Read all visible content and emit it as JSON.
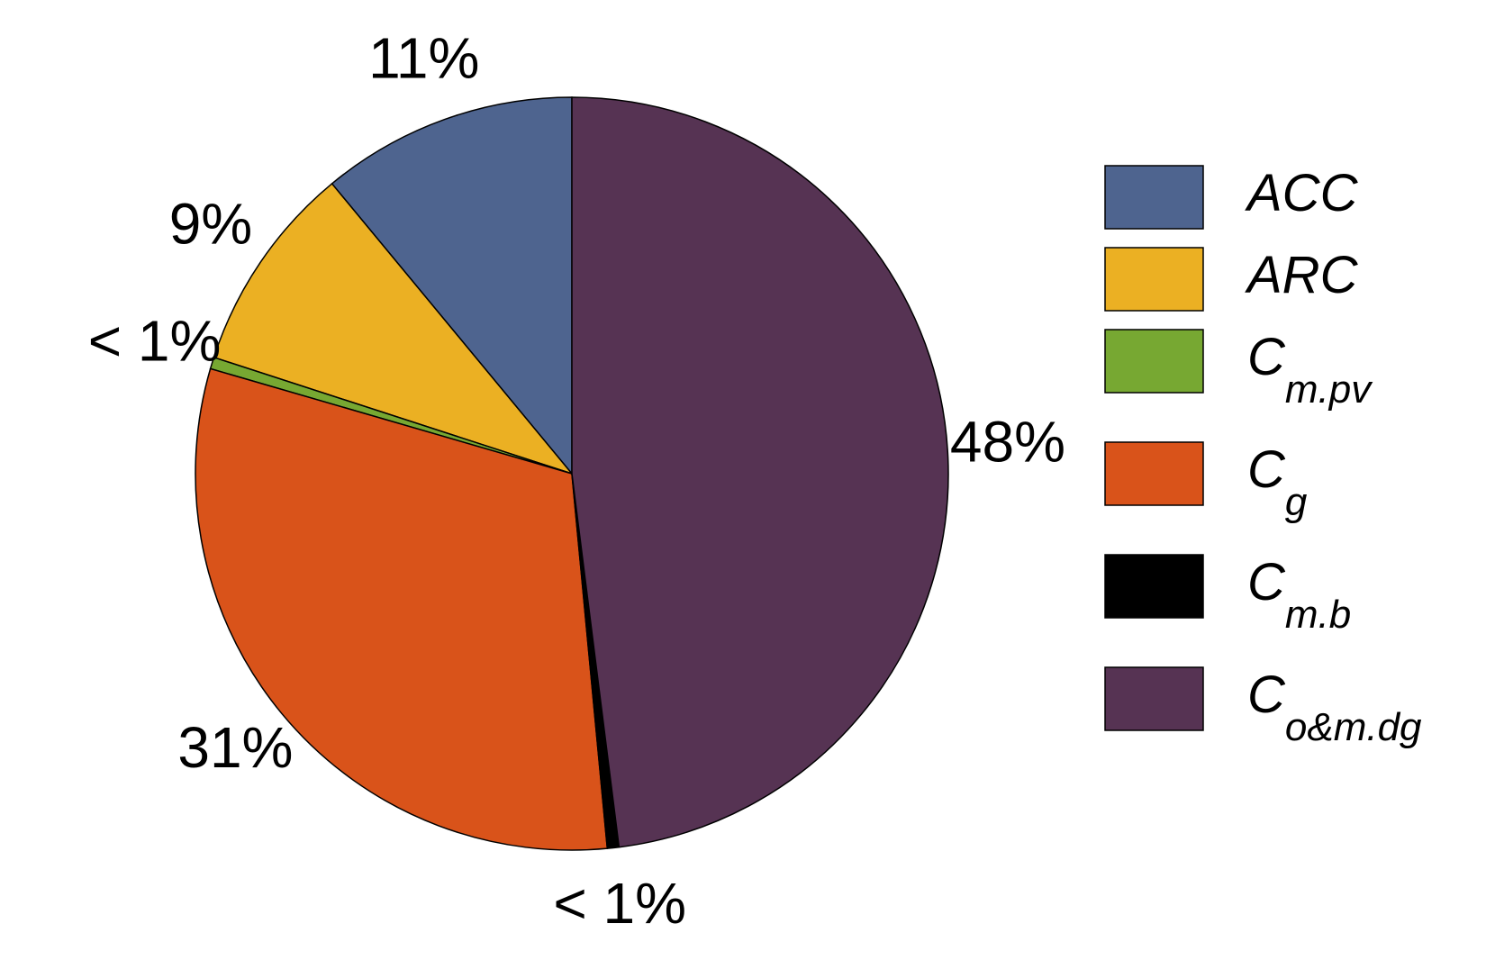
{
  "chart_data": {
    "type": "pie",
    "categories": [
      {
        "main": "ACC"
      },
      {
        "main": "ARC"
      },
      {
        "main": "C",
        "sub": "m.pv"
      },
      {
        "main": "C",
        "sub": "g"
      },
      {
        "main": "C",
        "sub": "m.b"
      },
      {
        "main": "C",
        "sub": "o&m.dg"
      }
    ],
    "values": [
      11,
      9,
      0.5,
      31,
      0.5,
      48
    ],
    "value_labels": [
      "11%",
      "9%",
      "< 1%",
      "31%",
      "< 1%",
      "48%"
    ],
    "colors": [
      "#4e648f",
      "#ebb023",
      "#77a832",
      "#d9531a",
      "#000000",
      "#563353"
    ],
    "direction": "counterclockwise",
    "start": "top",
    "legend": "right"
  }
}
